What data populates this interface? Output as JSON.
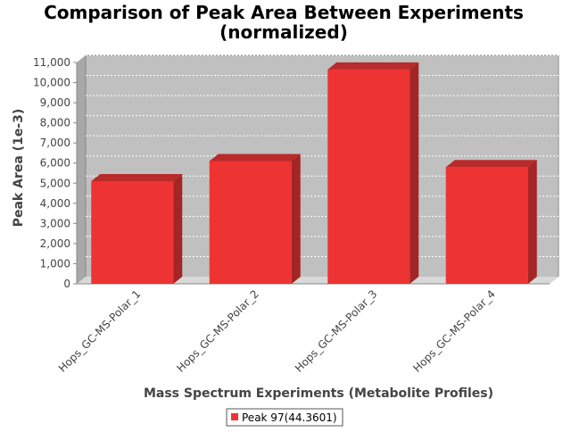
{
  "chart_data": {
    "type": "bar",
    "title": "Comparison of Peak Area Between Experiments (normalized)",
    "title_lines": [
      "Comparison of Peak Area Between Experiments",
      "(normalized)"
    ],
    "xlabel": "Mass Spectrum Experiments (Metabolite Profiles)",
    "ylabel": "Peak Area (1e-3)",
    "categories": [
      "Hops_GC-MS-Polar_1",
      "Hops_GC-MS-Polar_2",
      "Hops_GC-MS-Polar_3",
      "Hops_GC-MS-Polar_4"
    ],
    "series": [
      {
        "name": "Peak 97(44.3601)",
        "values": [
          5100,
          6100,
          10650,
          5800
        ],
        "color": "#ee3333"
      }
    ],
    "ylim": [
      0,
      11000
    ],
    "yticks": [
      0,
      1000,
      2000,
      3000,
      4000,
      5000,
      6000,
      7000,
      8000,
      9000,
      10000,
      11000
    ],
    "ytick_labels": [
      "0",
      "1,000",
      "2,000",
      "3,000",
      "4,000",
      "5,000",
      "6,000",
      "7,000",
      "8,000",
      "9,000",
      "10,000",
      "11,000"
    ],
    "grid": true,
    "three_d": true,
    "plot_background": "#c0c0c0",
    "legend_position": "bottom-center"
  }
}
